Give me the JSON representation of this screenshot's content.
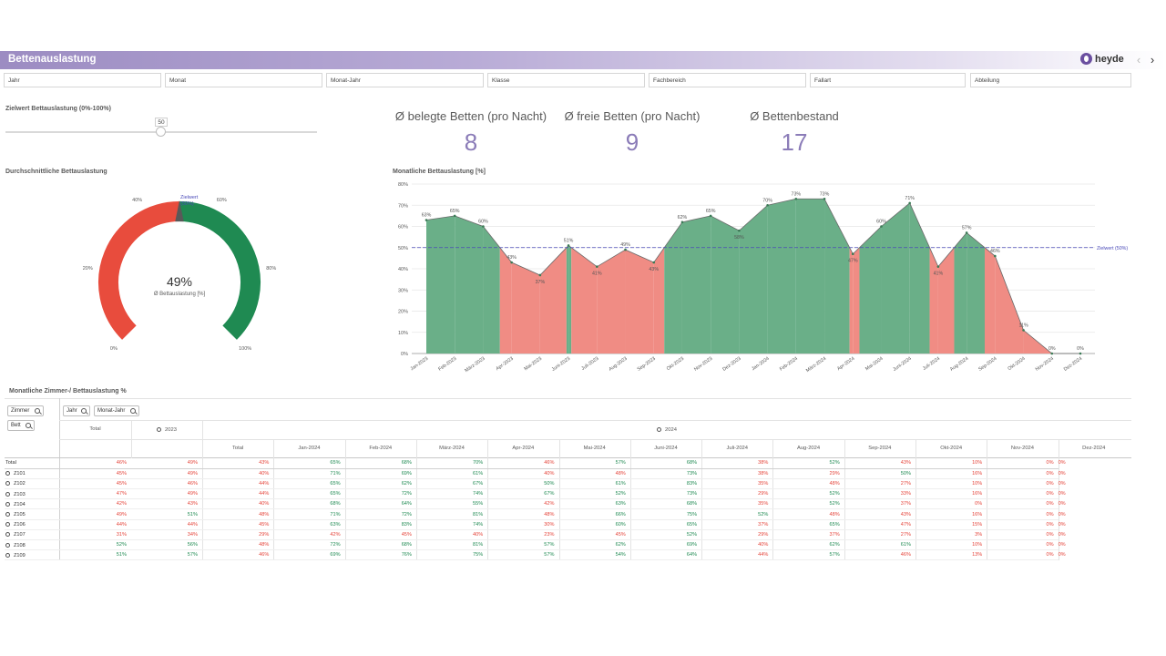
{
  "app": {
    "title": "Bettenauslastung",
    "brand": "heyde"
  },
  "filters": [
    "Jahr",
    "Monat",
    "Monat-Jahr",
    "Klasse",
    "Fachbereich",
    "Fallart",
    "Abteilung"
  ],
  "slider": {
    "title": "Zielwert Bettauslastung (0%-100%)",
    "value": "50"
  },
  "kpis": [
    {
      "label": "Ø belegte Betten (pro Nacht)",
      "value": "8"
    },
    {
      "label": "Ø freie Betten (pro Nacht)",
      "value": "9"
    },
    {
      "label": "Ø Bettenbestand",
      "value": "17"
    }
  ],
  "gauge": {
    "title": "Durchschnittliche Bettauslastung",
    "value_pct": 49,
    "value_label": "49%",
    "caption": "Ø Bettauslastung [%]",
    "target_label_1": "Zielwert",
    "target_label_2": "(50%)",
    "ticks": [
      "0%",
      "20%",
      "40%",
      "60%",
      "80%",
      "100%"
    ],
    "colors": {
      "below": "#e84c3d",
      "above": "#1f8a52",
      "target": "#595959"
    }
  },
  "chart_data": {
    "type": "area",
    "title": "Monatliche Bettauslastung [%]",
    "categories": [
      "Jan-2023",
      "Feb-2023",
      "März-2023",
      "Apr-2023",
      "Mai-2023",
      "Juni-2023",
      "Juli-2023",
      "Aug-2023",
      "Sep-2023",
      "Okt-2023",
      "Nov-2023",
      "Dez-2023",
      "Jan-2024",
      "Feb-2024",
      "März-2024",
      "Apr-2024",
      "Mai-2024",
      "Juni-2024",
      "Juli-2024",
      "Aug-2024",
      "Sep-2024",
      "Okt-2024",
      "Nov-2024",
      "Dez-2024"
    ],
    "values": [
      63,
      65,
      60,
      43,
      37,
      51,
      41,
      49,
      43,
      62,
      65,
      58,
      70,
      73,
      73,
      47,
      60,
      71,
      41,
      57,
      46,
      11,
      0,
      0
    ],
    "data_labels": [
      "63%",
      "65%",
      "60%",
      "43%",
      "37%",
      "51%",
      "41%",
      "49%",
      "43%",
      "62%",
      "65%",
      "58%",
      "70%",
      "73%",
      "73%",
      "47%",
      "60%",
      "71%",
      "41%",
      "57%",
      "46%",
      "11%",
      "0%",
      "0%"
    ],
    "y_ticks": [
      "0%",
      "10%",
      "20%",
      "30%",
      "40%",
      "50%",
      "60%",
      "70%",
      "80%"
    ],
    "ylim": [
      0,
      80
    ],
    "target": 50,
    "target_label": "Zielwert (50%)",
    "colors": {
      "above": "#6aaf88",
      "below": "#f08c84",
      "target": "#4a4ab8",
      "line": "#6a6a6a"
    }
  },
  "table": {
    "title": "Monatliche Zimmer-/ Bettauslastung %",
    "row_dims": [
      "Zimmer",
      "Bett"
    ],
    "col_dims": [
      "Jahr",
      "Monat-Jahr"
    ],
    "header_total": "Total",
    "year_2023": "2023",
    "year_2024": "2024",
    "month_headers": [
      "Total",
      "Jan-2024",
      "Feb-2024",
      "März-2024",
      "Apr-2024",
      "Mai-2024",
      "Juni-2024",
      "Juli-2024",
      "Aug-2024",
      "Sep-2024",
      "Okt-2024",
      "Nov-2024",
      "Dez-2024"
    ],
    "rows": [
      {
        "label": "Total",
        "cells": [
          "46%",
          "49%",
          "43%",
          "65%",
          "68%",
          "70%",
          "46%",
          "57%",
          "68%",
          "38%",
          "52%",
          "43%",
          "10%",
          "0%",
          "0%"
        ]
      },
      {
        "label": "Z101",
        "cells": [
          "45%",
          "49%",
          "40%",
          "71%",
          "69%",
          "61%",
          "40%",
          "48%",
          "73%",
          "38%",
          "29%",
          "50%",
          "16%",
          "0%",
          "0%"
        ]
      },
      {
        "label": "Z102",
        "cells": [
          "45%",
          "46%",
          "44%",
          "65%",
          "62%",
          "67%",
          "50%",
          "61%",
          "83%",
          "35%",
          "48%",
          "27%",
          "10%",
          "0%",
          "0%"
        ]
      },
      {
        "label": "Z103",
        "cells": [
          "47%",
          "49%",
          "44%",
          "65%",
          "72%",
          "74%",
          "67%",
          "52%",
          "73%",
          "29%",
          "52%",
          "33%",
          "16%",
          "0%",
          "0%"
        ]
      },
      {
        "label": "Z104",
        "cells": [
          "42%",
          "43%",
          "40%",
          "68%",
          "64%",
          "55%",
          "42%",
          "63%",
          "68%",
          "35%",
          "52%",
          "37%",
          "0%",
          "0%",
          "0%"
        ]
      },
      {
        "label": "Z105",
        "cells": [
          "49%",
          "51%",
          "48%",
          "71%",
          "72%",
          "81%",
          "48%",
          "66%",
          "75%",
          "52%",
          "48%",
          "43%",
          "16%",
          "0%",
          "0%"
        ]
      },
      {
        "label": "Z106",
        "cells": [
          "44%",
          "44%",
          "45%",
          "63%",
          "83%",
          "74%",
          "30%",
          "60%",
          "65%",
          "37%",
          "65%",
          "47%",
          "15%",
          "0%",
          "0%"
        ]
      },
      {
        "label": "Z107",
        "cells": [
          "31%",
          "34%",
          "29%",
          "42%",
          "45%",
          "40%",
          "23%",
          "45%",
          "52%",
          "29%",
          "37%",
          "27%",
          "3%",
          "0%",
          "0%"
        ]
      },
      {
        "label": "Z108",
        "cells": [
          "52%",
          "56%",
          "48%",
          "72%",
          "68%",
          "81%",
          "57%",
          "62%",
          "69%",
          "40%",
          "62%",
          "61%",
          "10%",
          "0%",
          "0%"
        ]
      },
      {
        "label": "Z109",
        "cells": [
          "51%",
          "57%",
          "46%",
          "69%",
          "76%",
          "75%",
          "57%",
          "54%",
          "64%",
          "44%",
          "57%",
          "46%",
          "13%",
          "0%",
          "0%"
        ]
      }
    ]
  }
}
